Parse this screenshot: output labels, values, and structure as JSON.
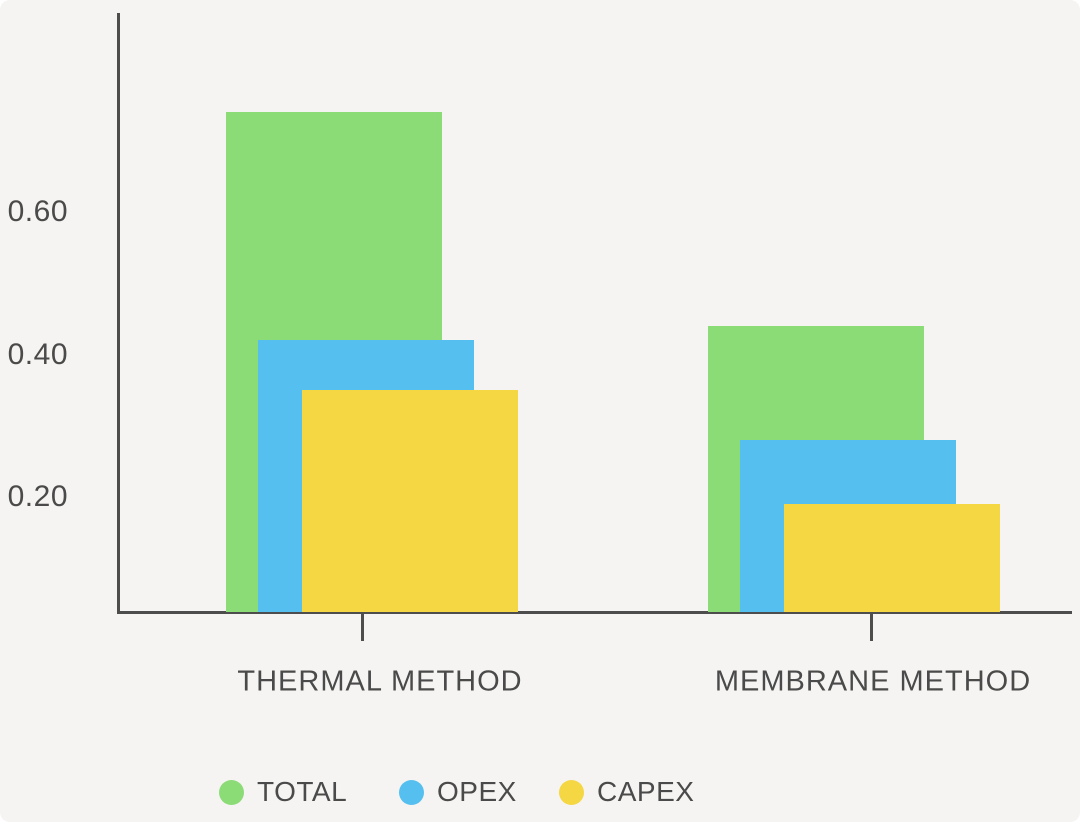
{
  "page": {
    "background_color": "#f5f4f2",
    "axis_color": "#4d4d4d",
    "label_color": "#4a4a4a"
  },
  "chart_data": {
    "type": "bar",
    "variant": "overlapped-group",
    "title": "",
    "categories": [
      "THERMAL METHOD",
      "MEMBRANE METHOD"
    ],
    "series": [
      {
        "name": "TOTAL",
        "color": "#8bdb76",
        "values": [
          0.74,
          0.44
        ]
      },
      {
        "name": "OPEX",
        "color": "#55bff0",
        "values": [
          0.42,
          0.28
        ]
      },
      {
        "name": "CAPEX",
        "color": "#f4d742",
        "values": [
          0.35,
          0.19
        ]
      }
    ],
    "y_ticks": [
      {
        "value": 0.2,
        "label": "0.20"
      },
      {
        "value": 0.4,
        "label": "0.40"
      },
      {
        "value": 0.6,
        "label": "0.60"
      }
    ],
    "ylim": [
      0,
      0.88
    ],
    "xlabel": "",
    "ylabel": "",
    "grid": false,
    "legend_position": "bottom"
  }
}
